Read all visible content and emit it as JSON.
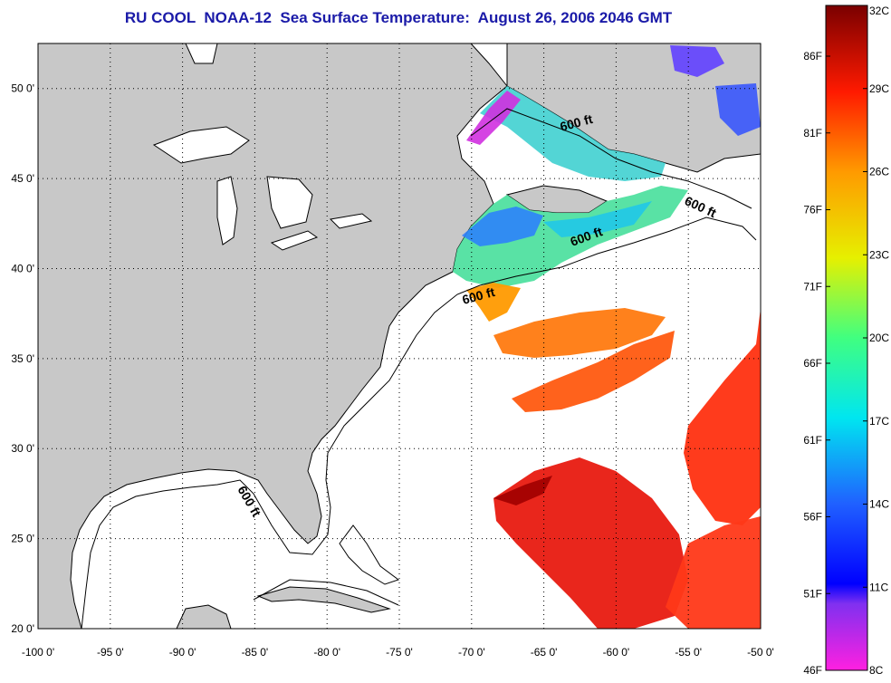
{
  "title": "RU COOL  NOAA-12  Sea Surface Temperature:  August 26, 2006 2046 GMT",
  "map": {
    "lon_range": [
      -100,
      -50
    ],
    "lat_range": [
      20,
      52.5
    ],
    "lon_ticks": [
      "-100 0'",
      "-95 0'",
      "-90 0'",
      "-85 0'",
      "-80 0'",
      "-75 0'",
      "-70 0'",
      "-65 0'",
      "-60 0'",
      "-55 0'",
      "-50 0'"
    ],
    "lat_ticks": [
      "20 0'",
      "25 0'",
      "30 0'",
      "35 0'",
      "40 0'",
      "45 0'",
      "50 0'"
    ],
    "contour_label": "600 ft",
    "land_color": "#c8c8c8",
    "ocean_color": "#ffffff",
    "grid": true
  },
  "colorbar": {
    "celsius": [
      "32C",
      "29C",
      "26C",
      "23C",
      "20C",
      "17C",
      "14C",
      "11C",
      "8C"
    ],
    "fahrenheit": [
      "86F",
      "81F",
      "76F",
      "71F",
      "66F",
      "61F",
      "56F",
      "51F",
      "46F"
    ],
    "colors": [
      "#7a0000",
      "#ff1a00",
      "#ff9a00",
      "#e6f000",
      "#40ff80",
      "#00e6f0",
      "#2060ff",
      "#0000ff",
      "#ff20e0"
    ]
  }
}
